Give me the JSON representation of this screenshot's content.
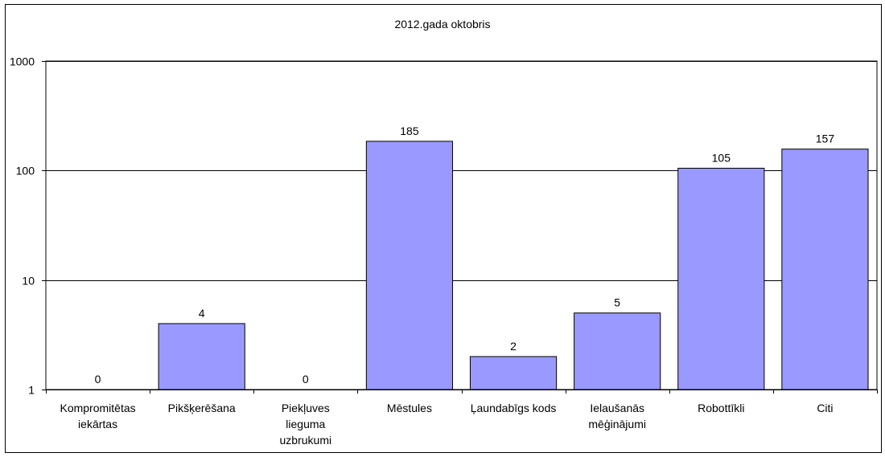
{
  "chart_data": {
    "type": "bar",
    "title": "2012.gada oktobris",
    "xlabel": "",
    "ylabel": "",
    "y_scale": "log",
    "ylim": [
      1,
      1000
    ],
    "y_ticks": [
      1,
      10,
      100,
      1000
    ],
    "y_tick_labels": [
      "1",
      "10",
      "100",
      "1000"
    ],
    "grid": true,
    "legend": "none",
    "categories": [
      [
        "Kompromitētas",
        "iekārtas"
      ],
      [
        "Pikšķerēšana"
      ],
      [
        "Piekļuves",
        "lieguma",
        "uzbrukumi"
      ],
      [
        "Mēstules"
      ],
      [
        "Ļaundabīgs kods"
      ],
      [
        "Ielaušanās",
        "mēģinājumi"
      ],
      [
        "Robottīkli"
      ],
      [
        "Citi"
      ]
    ],
    "values": [
      0,
      4,
      0,
      185,
      2,
      5,
      105,
      157
    ],
    "data_labels": [
      "0",
      "4",
      "0",
      "185",
      "2",
      "5",
      "105",
      "157"
    ],
    "colors": {
      "bar_fill": "#9999ff",
      "bar_stroke": "#000000",
      "grid": "#000000",
      "frame": "#000000",
      "background": "#ffffff"
    }
  }
}
